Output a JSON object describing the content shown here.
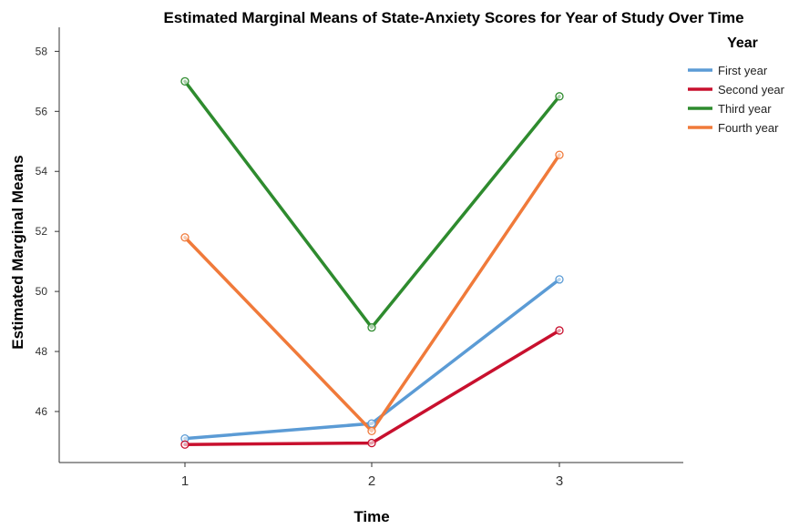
{
  "chart_data": {
    "type": "line",
    "title": "Estimated Marginal Means of State-Anxiety Scores for Year of Study Over Time",
    "xlabel": "Time",
    "ylabel": "Estimated Marginal Means",
    "categories": [
      "1",
      "2",
      "3"
    ],
    "yticks": [
      "46",
      "48",
      "50",
      "52",
      "54",
      "56",
      "58"
    ],
    "ylim": [
      44.3,
      58.8
    ],
    "grid": false,
    "legend": {
      "title": "Year",
      "placement": "top-right"
    },
    "series": [
      {
        "name": "First year",
        "color": "#5b9bd5",
        "values": [
          45.1,
          45.6,
          50.4
        ]
      },
      {
        "name": "Second year",
        "color": "#c8102e",
        "values": [
          44.9,
          44.95,
          48.7
        ]
      },
      {
        "name": "Third year",
        "color": "#2e8b2e",
        "values": [
          57.0,
          48.8,
          56.5
        ]
      },
      {
        "name": "Fourth year",
        "color": "#f07a3a",
        "values": [
          51.8,
          45.35,
          54.55
        ]
      }
    ]
  }
}
